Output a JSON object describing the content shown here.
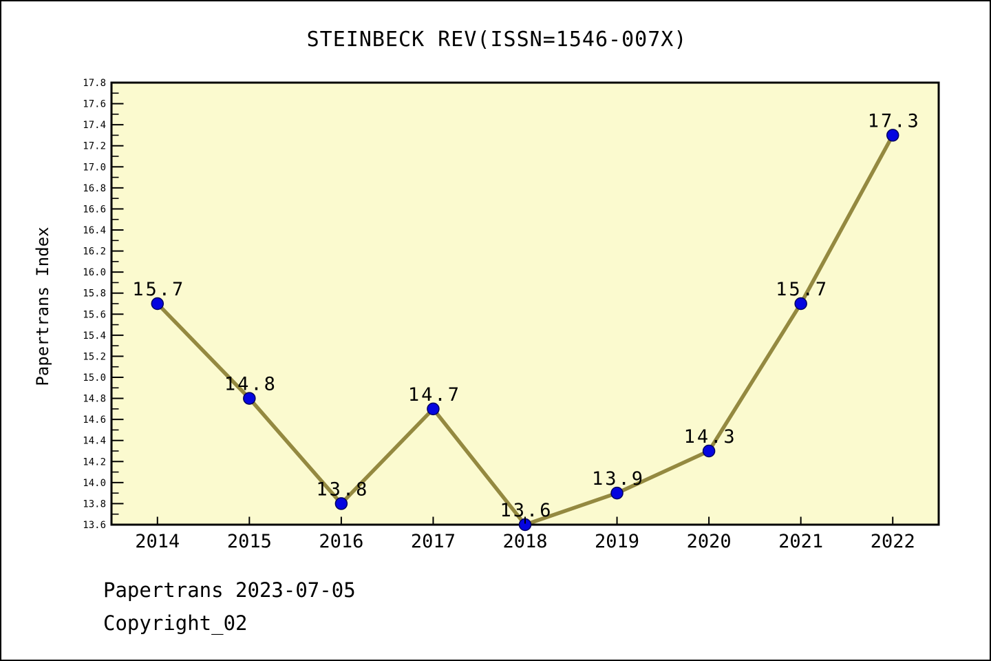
{
  "title": "STEINBECK REV(ISSN=1546-007X)",
  "footer": {
    "line1": "Papertrans 2023-07-05",
    "line2": "Copyright_02"
  },
  "chart_data": {
    "type": "line",
    "title": "STEINBECK REV(ISSN=1546-007X)",
    "x": [
      2014,
      2015,
      2016,
      2017,
      2018,
      2019,
      2020,
      2021,
      2022
    ],
    "values": [
      15.7,
      14.8,
      13.8,
      14.7,
      13.6,
      13.9,
      14.3,
      15.7,
      17.3
    ],
    "point_labels": [
      "15.7",
      "14.8",
      "13.8",
      "14.7",
      "13.6",
      "13.9",
      "14.3",
      "15.7",
      "17.3"
    ],
    "xlabel": "",
    "ylabel": "Papertrans Index",
    "xlim": [
      2013.5,
      2022.5
    ],
    "ylim": [
      13.6,
      17.8
    ],
    "ytick_major_step": 0.2,
    "ytick_minor_step": 0.1,
    "grid": "off",
    "legend": "none",
    "colors": {
      "plot_bg": "#FBFACF",
      "line": "#948940",
      "marker_fill": "#0505E0",
      "marker_edge": "#000060",
      "axis": "#000000",
      "text": "#000000"
    }
  }
}
